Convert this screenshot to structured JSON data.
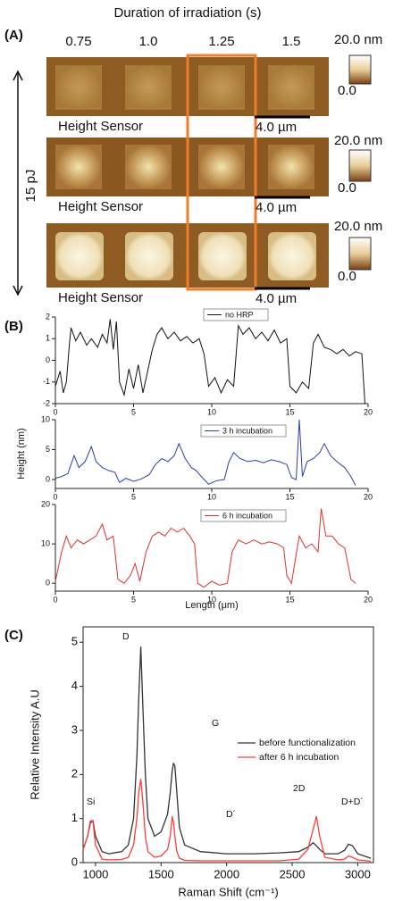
{
  "panel_labels": [
    "(A)",
    "(B)",
    "(C)"
  ],
  "panel_a": {
    "title": "Duration of irradiation (s)",
    "durations": [
      "0.75",
      "1.0",
      "1.25",
      "1.5"
    ],
    "energy": "15 pJ",
    "rows": [
      {
        "label": "Height Sensor",
        "scale_bar": "4.0 µm",
        "colorbar_max": "20.0 nm",
        "colorbar_min": "0.0"
      },
      {
        "label": "Height Sensor",
        "scale_bar": "4.0 µm",
        "colorbar_max": "20.0 nm",
        "colorbar_min": "0.0"
      },
      {
        "label": "Height Sensor",
        "scale_bar": "4.0 µm",
        "colorbar_max": "20.0 nm",
        "colorbar_min": "0.0"
      }
    ]
  },
  "chart_data": [
    {
      "type": "line",
      "xlim": [
        0,
        20
      ],
      "ylim": [
        -2,
        2
      ],
      "xticks": [
        0,
        5,
        10,
        15,
        20
      ],
      "yticks": [
        -2,
        -1,
        0,
        1,
        2
      ],
      "ylabel": "Height (nm)",
      "x": [
        0,
        0.3,
        0.5,
        0.7,
        0.9,
        1.0,
        1.3,
        1.6,
        2.0,
        2.3,
        2.7,
        3.0,
        3.3,
        3.5,
        3.7,
        3.9,
        4.1,
        4.4,
        4.7,
        5.0,
        5.3,
        5.6,
        5.9,
        6.2,
        6.5,
        6.8,
        7.2,
        7.6,
        8.0,
        8.4,
        8.8,
        9.2,
        9.5,
        9.8,
        10.2,
        10.6,
        11.0,
        11.4,
        11.7,
        12.0,
        12.4,
        12.8,
        13.2,
        13.6,
        14.0,
        14.4,
        14.8,
        15.0,
        15.4,
        15.8,
        16.2,
        16.5,
        16.8,
        17.2,
        17.6,
        18.0,
        18.4,
        18.8,
        19.2,
        19.6,
        19.8
      ],
      "series": [
        {
          "name": "no HRP",
          "color": "#111111",
          "values": [
            -1.2,
            -0.5,
            -1.5,
            -1,
            0.8,
            1.5,
            0.9,
            1.3,
            0.7,
            1.0,
            0.6,
            1.2,
            0.8,
            1.9,
            0.5,
            1.8,
            -1.0,
            -1.6,
            -0.4,
            -1.3,
            -0.2,
            -1.5,
            -0.5,
            0.5,
            1.2,
            1.5,
            1.0,
            1.3,
            0.9,
            1.1,
            0.8,
            1.0,
            0.3,
            -1.2,
            -0.8,
            -1.5,
            -0.9,
            -1.2,
            1.6,
            1.2,
            1.5,
            1.0,
            1.3,
            0.9,
            1.4,
            0.8,
            1.0,
            -1.2,
            -1.5,
            -1.0,
            -1.3,
            0.8,
            1.2,
            0.6,
            0.5,
            0.3,
            0.5,
            0.2,
            0.4,
            0.3,
            -2
          ]
        }
      ]
    },
    {
      "type": "line",
      "xlim": [
        0,
        20
      ],
      "ylim": [
        -1.5,
        10
      ],
      "xticks": [
        0,
        5,
        10,
        15,
        20
      ],
      "yticks": [
        0,
        5,
        10
      ],
      "x": [
        0,
        0.4,
        0.8,
        1.2,
        1.5,
        1.9,
        2.3,
        2.6,
        3.0,
        3.4,
        3.8,
        4.1,
        4.5,
        5.0,
        5.5,
        6.0,
        6.4,
        6.8,
        7.2,
        7.6,
        7.9,
        8.3,
        8.7,
        9.0,
        9.4,
        9.8,
        10.3,
        10.8,
        11.1,
        11.4,
        11.8,
        12.3,
        12.8,
        13.3,
        13.8,
        14.3,
        14.8,
        15.1,
        15.4,
        15.6,
        15.8,
        16.1,
        16.5,
        16.9,
        17.2,
        17.6,
        18.0,
        18.5,
        18.9,
        19.2
      ],
      "series": [
        {
          "name": "3 h incubation",
          "color": "#2b3fa8",
          "values": [
            0.2,
            0.5,
            1,
            4,
            2,
            3,
            5.5,
            3,
            2,
            1.5,
            1.2,
            -0.5,
            0.2,
            -0.3,
            0.1,
            0.8,
            2.5,
            3.5,
            3,
            4,
            6,
            3.5,
            2,
            1.5,
            0.3,
            -0.8,
            -0.2,
            0,
            3,
            4.5,
            3.5,
            3,
            3.2,
            2.8,
            3.3,
            3,
            2.5,
            0.3,
            0,
            10,
            0.5,
            3,
            3.5,
            4.5,
            6,
            4,
            3,
            2,
            0.5,
            -1
          ]
        }
      ]
    },
    {
      "type": "line",
      "xlim": [
        0,
        20
      ],
      "ylim": [
        -2,
        20
      ],
      "xticks": [
        0,
        5,
        10,
        15,
        20
      ],
      "yticks": [
        0,
        10,
        20
      ],
      "xlabel": "Length (μm)",
      "x": [
        0,
        0.4,
        0.7,
        1.0,
        1.4,
        1.8,
        2.2,
        2.6,
        3.0,
        3.3,
        3.7,
        4.0,
        4.4,
        4.8,
        5.1,
        5.4,
        5.8,
        6.2,
        6.6,
        7.0,
        7.4,
        7.8,
        8.2,
        8.6,
        8.9,
        9.1,
        9.5,
        10.0,
        10.5,
        11.0,
        11.3,
        11.7,
        12.2,
        12.7,
        13.2,
        13.7,
        14.2,
        14.6,
        14.8,
        15.1,
        15.3,
        15.6,
        16.0,
        16.4,
        16.8,
        17.0,
        17.3,
        17.7,
        18.1,
        18.5,
        18.9,
        19.2
      ],
      "series": [
        {
          "name": "6 h incubation",
          "color": "#e03030",
          "values": [
            0.5,
            8,
            12,
            9,
            11,
            10,
            11,
            12,
            15,
            11,
            12,
            1,
            0,
            2,
            5,
            0.5,
            8,
            12,
            13,
            12,
            14,
            13,
            14,
            12,
            10,
            0,
            -1,
            0.5,
            -0.5,
            0,
            8,
            11,
            10,
            11,
            10,
            10.5,
            10,
            9,
            2,
            0,
            5,
            12,
            9,
            10,
            8,
            19,
            12,
            12,
            10,
            9,
            1,
            0
          ]
        }
      ]
    },
    {
      "type": "line",
      "xlim": [
        905,
        3120
      ],
      "ylim": [
        0,
        5.35
      ],
      "xticks": [
        1000,
        1500,
        2000,
        2500,
        3000
      ],
      "yticks": [
        0,
        1,
        2,
        3,
        4,
        5
      ],
      "xlabel": "Raman Shift (cm⁻¹)",
      "ylabel": "Relative Intensity A.U",
      "annotations": [
        "Si",
        "D",
        "G",
        "D´",
        "2D",
        "D+D´"
      ],
      "x": [
        905,
        940,
        960,
        980,
        1000,
        1050,
        1100,
        1200,
        1250,
        1290,
        1315,
        1330,
        1345,
        1360,
        1380,
        1400,
        1450,
        1500,
        1550,
        1570,
        1585,
        1595,
        1605,
        1620,
        1640,
        1680,
        1800,
        2000,
        2200,
        2400,
        2550,
        2620,
        2660,
        2685,
        2710,
        2750,
        2850,
        2900,
        2930,
        2960,
        3000,
        3100
      ],
      "series": [
        {
          "name": "before functionalization",
          "color": "#333333",
          "values": [
            0.3,
            0.6,
            0.9,
            0.95,
            0.6,
            0.25,
            0.2,
            0.25,
            0.4,
            1.0,
            2.4,
            3.8,
            4.9,
            3.6,
            2.0,
            1.0,
            0.6,
            0.7,
            1.1,
            1.6,
            2.1,
            2.25,
            2.2,
            1.6,
            0.8,
            0.4,
            0.25,
            0.2,
            0.2,
            0.22,
            0.25,
            0.35,
            0.45,
            0.38,
            0.3,
            0.2,
            0.2,
            0.28,
            0.42,
            0.38,
            0.2,
            0.1
          ]
        },
        {
          "name": "after 6 h incubation",
          "color": "#ff3b3b",
          "values": [
            0.3,
            0.6,
            0.95,
            0.95,
            0.4,
            0.08,
            0.06,
            0.07,
            0.12,
            0.4,
            1.0,
            1.6,
            1.9,
            1.4,
            0.6,
            0.25,
            0.12,
            0.15,
            0.3,
            0.6,
            1.05,
            0.9,
            0.6,
            0.25,
            0.1,
            0.05,
            0.04,
            0.04,
            0.04,
            0.04,
            0.08,
            0.3,
            0.75,
            1.05,
            0.6,
            0.12,
            0.06,
            0.08,
            0.15,
            0.12,
            0.06,
            0.03
          ]
        }
      ]
    }
  ]
}
